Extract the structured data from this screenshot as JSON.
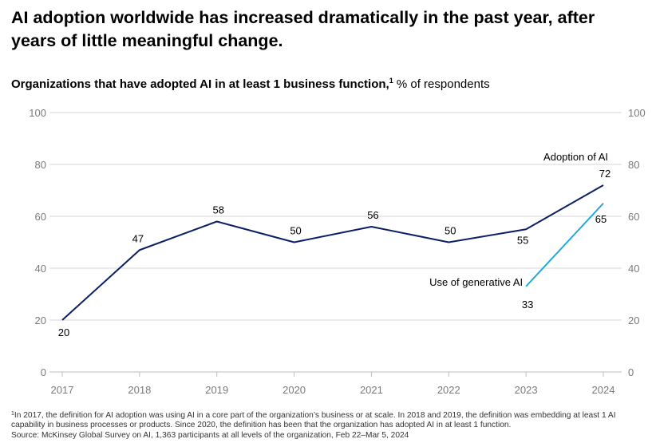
{
  "title": "AI adoption worldwide has increased dramatically in the past year, after years of little meaningful change.",
  "subtitle": {
    "bold": "Organizations that have adopted AI in at least 1 business function,",
    "sup": "1",
    "regular": " % of respondents"
  },
  "footnote": {
    "sup": "1",
    "text": "In 2017, the definition for AI adoption was using AI in a core part of the organization’s business or at scale. In 2018 and 2019, the definition was embedding at least 1 AI capability in business processes or products. Since 2020, the definition has been that the organization has adopted AI in at least 1 function.",
    "source": "Source: McKinsey Global Survey on AI, 1,363 participants at all levels of the organization, Feb 22–Mar 5, 2024"
  },
  "colors": {
    "adoption": "#0b1f65",
    "genai": "#1aa7e0",
    "grid": "#d6d6d6",
    "tick": "#7a7a7a"
  },
  "chart_data": {
    "type": "line",
    "x": [
      "2017",
      "2018",
      "2019",
      "2020",
      "2021",
      "2022",
      "2023",
      "2024"
    ],
    "ylim": [
      0,
      100
    ],
    "yticks": [
      "0",
      "20",
      "40",
      "60",
      "80",
      "100"
    ],
    "grid": true,
    "series": [
      {
        "name": "Adoption of AI",
        "x": [
          "2017",
          "2018",
          "2019",
          "2020",
          "2021",
          "2022",
          "2023",
          "2024"
        ],
        "values": [
          20,
          47,
          58,
          50,
          56,
          50,
          55,
          72
        ],
        "labels": [
          "20",
          "47",
          "58",
          "50",
          "56",
          "50",
          "55",
          "72"
        ]
      },
      {
        "name": "Use of generative AI",
        "x": [
          "2023",
          "2024"
        ],
        "values": [
          33,
          65
        ],
        "labels": [
          "33",
          "65"
        ]
      }
    ]
  }
}
